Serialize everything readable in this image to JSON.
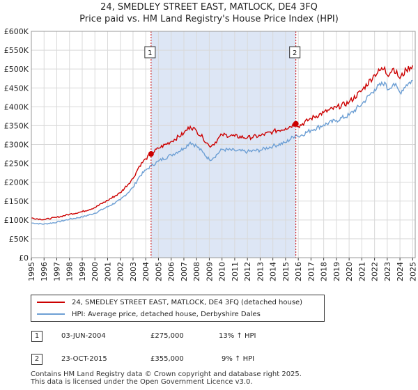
{
  "chart_data": {
    "type": "line",
    "title": "24, SMEDLEY STREET EAST, MATLOCK, DE4 3FQ",
    "subtitle": "Price paid vs. HM Land Registry's House Price Index (HPI)",
    "xlabel": "",
    "ylabel": "",
    "xlim": [
      1995,
      2025.2
    ],
    "ylim": [
      0,
      600000
    ],
    "y_ticks": [
      0,
      50000,
      100000,
      150000,
      200000,
      250000,
      300000,
      350000,
      400000,
      450000,
      500000,
      550000,
      600000
    ],
    "y_tick_labels": [
      "£0",
      "£50K",
      "£100K",
      "£150K",
      "£200K",
      "£250K",
      "£300K",
      "£350K",
      "£400K",
      "£450K",
      "£500K",
      "£550K",
      "£600K"
    ],
    "x_ticks": [
      "1995",
      "1996",
      "1997",
      "1998",
      "1999",
      "2000",
      "2001",
      "2002",
      "2003",
      "2004",
      "2005",
      "2006",
      "2007",
      "2008",
      "2009",
      "2010",
      "2011",
      "2012",
      "2013",
      "2014",
      "2015",
      "2016",
      "2017",
      "2018",
      "2019",
      "2020",
      "2021",
      "2022",
      "2023",
      "2024",
      "2025"
    ],
    "grid": true,
    "shaded_span": [
      2004.42,
      2015.81
    ],
    "series": [
      {
        "name": "24, SMEDLEY STREET EAST, MATLOCK, DE4 3FQ (detached house)",
        "color": "#cc0000",
        "x": [
          1995,
          1996,
          1997,
          1998,
          1999,
          2000,
          2001,
          2002,
          2003,
          2003.5,
          2004,
          2004.42,
          2005,
          2006,
          2007,
          2007.5,
          2008,
          2008.5,
          2009,
          2009.3,
          2010,
          2011,
          2012,
          2013,
          2014,
          2015,
          2015.81,
          2016,
          2017,
          2018,
          2019,
          2020,
          2021,
          2022,
          2022.8,
          2023,
          2023.5,
          2024,
          2024.5,
          2025
        ],
        "values": [
          105000,
          101000,
          107000,
          115000,
          122000,
          133000,
          152000,
          172000,
          210000,
          243000,
          262000,
          275000,
          290000,
          308000,
          330000,
          348000,
          336000,
          318000,
          296000,
          300000,
          326000,
          322000,
          318000,
          323000,
          334000,
          343000,
          355000,
          348000,
          369000,
          385000,
          398000,
          412000,
          443000,
          485000,
          505000,
          484000,
          502000,
          475000,
          498000,
          510000
        ]
      },
      {
        "name": "HPI: Average price, detached house, Derbyshire Dales",
        "color": "#6d9fd4",
        "x": [
          1995,
          1996,
          1997,
          1998,
          1999,
          2000,
          2001,
          2002,
          2003,
          2003.5,
          2004,
          2004.42,
          2005,
          2006,
          2007,
          2007.5,
          2008,
          2008.5,
          2009,
          2009.3,
          2010,
          2011,
          2012,
          2013,
          2014,
          2015,
          2015.81,
          2016,
          2017,
          2018,
          2019,
          2020,
          2021,
          2022,
          2022.8,
          2023,
          2023.5,
          2024,
          2024.5,
          2025
        ],
        "values": [
          92000,
          89000,
          94000,
          102000,
          108000,
          118000,
          135000,
          153000,
          186000,
          215000,
          232000,
          243000,
          256000,
          272000,
          290000,
          306000,
          296000,
          279000,
          260000,
          264000,
          287000,
          284000,
          281000,
          285000,
          296000,
          305000,
          326000,
          321000,
          338000,
          352000,
          364000,
          378000,
          407000,
          446000,
          465000,
          445000,
          462000,
          438000,
          458000,
          470000
        ]
      }
    ],
    "transactions": [
      {
        "label": "1",
        "x": 2004.42,
        "y": 275000
      },
      {
        "label": "2",
        "x": 2015.81,
        "y": 355000
      }
    ]
  },
  "legend": {
    "property_label": "24, SMEDLEY STREET EAST, MATLOCK, DE4 3FQ (detached house)",
    "hpi_label": "HPI: Average price, detached house, Derbyshire Dales"
  },
  "table": [
    {
      "num": "1",
      "date": "03-JUN-2004",
      "price": "£275,000",
      "hpi": "13% ↑ HPI"
    },
    {
      "num": "2",
      "date": "23-OCT-2015",
      "price": "£355,000",
      "hpi": "9% ↑ HPI"
    }
  ],
  "footer": {
    "line1": "Contains HM Land Registry data © Crown copyright and database right 2025.",
    "line2": "This data is licensed under the Open Government Licence v3.0."
  }
}
